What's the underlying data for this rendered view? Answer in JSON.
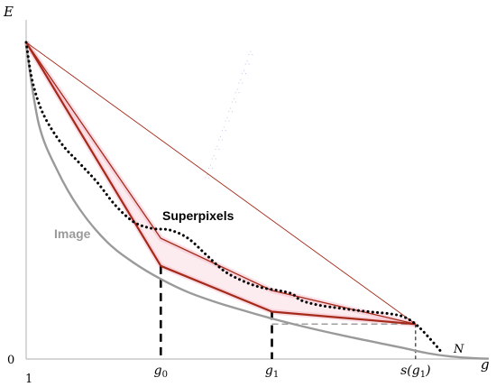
{
  "chart_data": {
    "type": "line",
    "title": "",
    "xlabel": "g",
    "ylabel": "E",
    "x_ticks": [
      {
        "label_base": "1",
        "label_sub": "",
        "x": 1
      },
      {
        "label_base": "g",
        "label_sub": "0",
        "x": 150
      },
      {
        "label_base": "g",
        "label_sub": "1",
        "x": 273
      },
      {
        "label_base": "s(g",
        "label_sub": "1",
        "label_close": ")",
        "x": 432
      }
    ],
    "y_ticks": [
      {
        "label": "0",
        "y": 0
      }
    ],
    "xlim": [
      1,
      512
    ],
    "ylim": [
      0,
      100
    ],
    "end_label": "N",
    "series": [
      {
        "name": "Image",
        "color": "#9a9a9a",
        "style": "solid",
        "points": [
          [
            1,
            96
          ],
          [
            15,
            72
          ],
          [
            35,
            58
          ],
          [
            60,
            46
          ],
          [
            90,
            36
          ],
          [
            120,
            29.5
          ],
          [
            150,
            24.5
          ],
          [
            180,
            20.5
          ],
          [
            210,
            17.5
          ],
          [
            240,
            15
          ],
          [
            273,
            12.4
          ],
          [
            310,
            9.8
          ],
          [
            350,
            7.3
          ],
          [
            390,
            5
          ],
          [
            420,
            3.3
          ],
          [
            445,
            1.8
          ],
          [
            470,
            0.8
          ],
          [
            495,
            0.3
          ],
          [
            512,
            0.1
          ]
        ]
      },
      {
        "name": "Superpixels",
        "color": "#000000",
        "style": "dotted",
        "points": [
          [
            1,
            97
          ],
          [
            8,
            85
          ],
          [
            20,
            75
          ],
          [
            40,
            66
          ],
          [
            60,
            60
          ],
          [
            80,
            54
          ],
          [
            100,
            47
          ],
          [
            120,
            42
          ],
          [
            140,
            40
          ],
          [
            160,
            39.5
          ],
          [
            180,
            37
          ],
          [
            200,
            32
          ],
          [
            220,
            27
          ],
          [
            240,
            24
          ],
          [
            260,
            22
          ],
          [
            280,
            21
          ],
          [
            295,
            20
          ],
          [
            305,
            18
          ],
          [
            325,
            16.5
          ],
          [
            350,
            15.5
          ],
          [
            380,
            14.5
          ],
          [
            405,
            13.8
          ],
          [
            420,
            12.8
          ],
          [
            432,
            10.7
          ],
          [
            442,
            8
          ],
          [
            455,
            4
          ],
          [
            462,
            1.6
          ]
        ]
      }
    ],
    "approximations": [
      {
        "color": "#a52a1a",
        "width": 2.2,
        "points": [
          [
            1,
            97
          ],
          [
            150,
            28.5
          ],
          [
            273,
            14.5
          ],
          [
            432,
            10.7
          ]
        ]
      },
      {
        "color": "#a52a1a",
        "width": 1.3,
        "points": [
          [
            1,
            97
          ],
          [
            150,
            37
          ],
          [
            273,
            21
          ],
          [
            432,
            10.7
          ]
        ]
      },
      {
        "color": "#a52a1a",
        "width": 0.9,
        "points": [
          [
            1,
            97
          ],
          [
            432,
            10.7
          ]
        ]
      }
    ],
    "guide_segments": [
      {
        "x": 150,
        "y_top": 28.5
      },
      {
        "x": 273,
        "y_top": 14.5
      },
      {
        "x": 432,
        "y_top": 10.7
      }
    ],
    "dashed_horizontal": {
      "x_start": 273,
      "x_end": 432,
      "y": 10.7
    }
  },
  "labels": {
    "image": "Image",
    "superpixels": "Superpixels",
    "image_color": "#9a9a9a"
  }
}
